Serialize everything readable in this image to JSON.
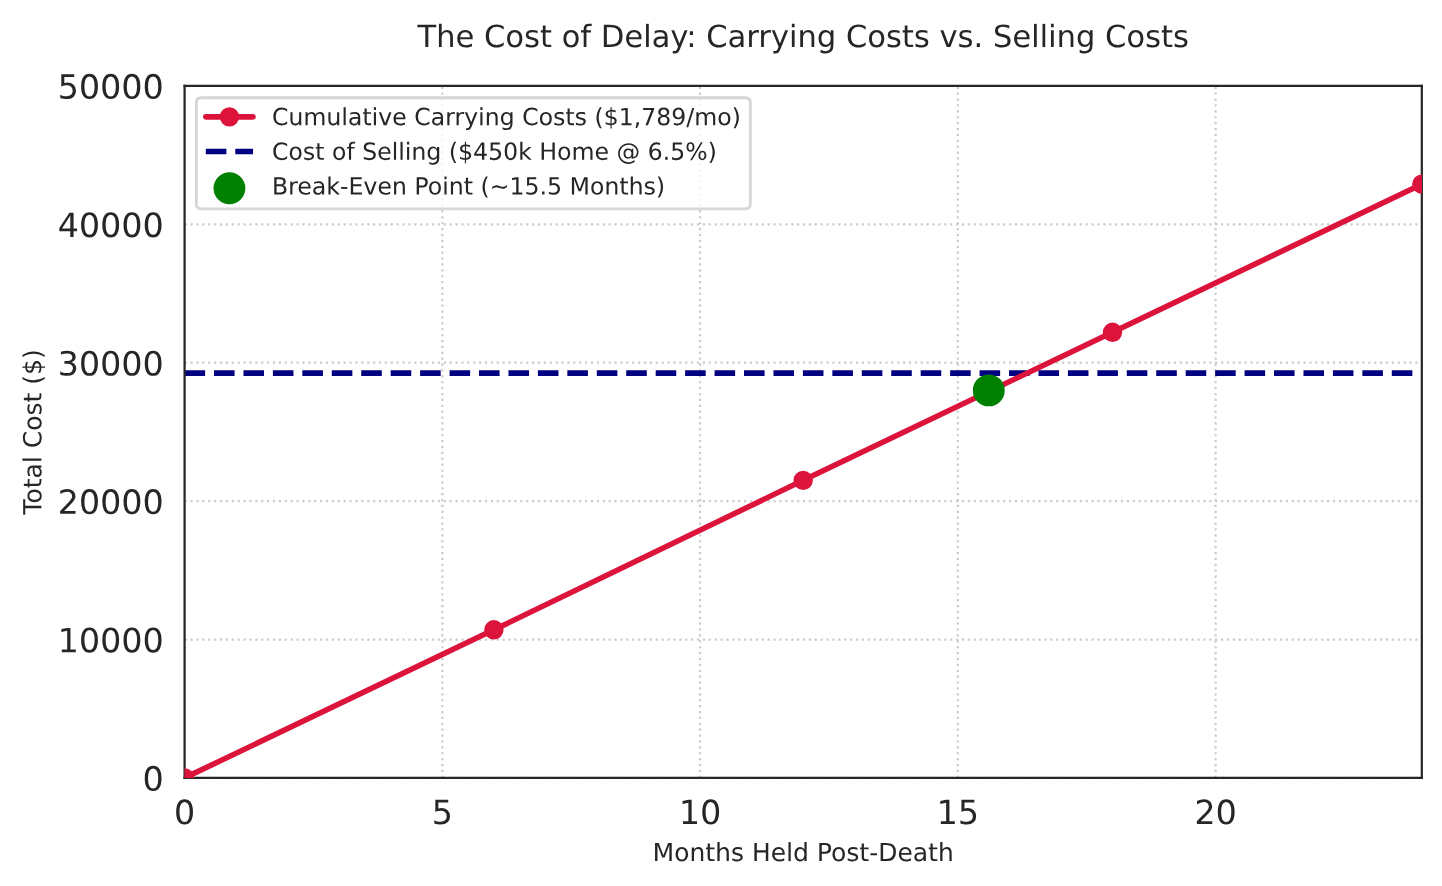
{
  "chart_data": {
    "type": "line",
    "title": "The Cost of Delay: Carrying Costs vs. Selling Costs",
    "xlabel": "Months Held Post-Death",
    "ylabel": "Total Cost ($)",
    "series": [
      {
        "name": "Cumulative Carrying Costs ($1,789/mo)",
        "color": "#dc143c",
        "x": [
          0,
          6,
          12,
          18,
          24
        ],
        "values": [
          0,
          10700,
          21500,
          32200,
          42900
        ],
        "marker": "circle",
        "line_style": "solid"
      },
      {
        "name": "Break-Even Point (~15.5 Months)",
        "type": "scatter",
        "color": "#008000",
        "x": [
          15.6
        ],
        "values": [
          28000
        ],
        "marker": "circle"
      }
    ],
    "ref_lines": [
      {
        "axis": "y",
        "value": 29250,
        "label": "Cost of Selling ($450k Home @ 6.5%)",
        "color": "#000080",
        "line_style": "dashed"
      }
    ],
    "xlim": [
      0,
      24
    ],
    "xticks": [
      0,
      5,
      10,
      15,
      20
    ],
    "ylim": [
      0,
      50000
    ],
    "yticks": [
      0,
      10000,
      20000,
      30000,
      40000,
      50000
    ],
    "grid": true,
    "legend": "top left"
  }
}
